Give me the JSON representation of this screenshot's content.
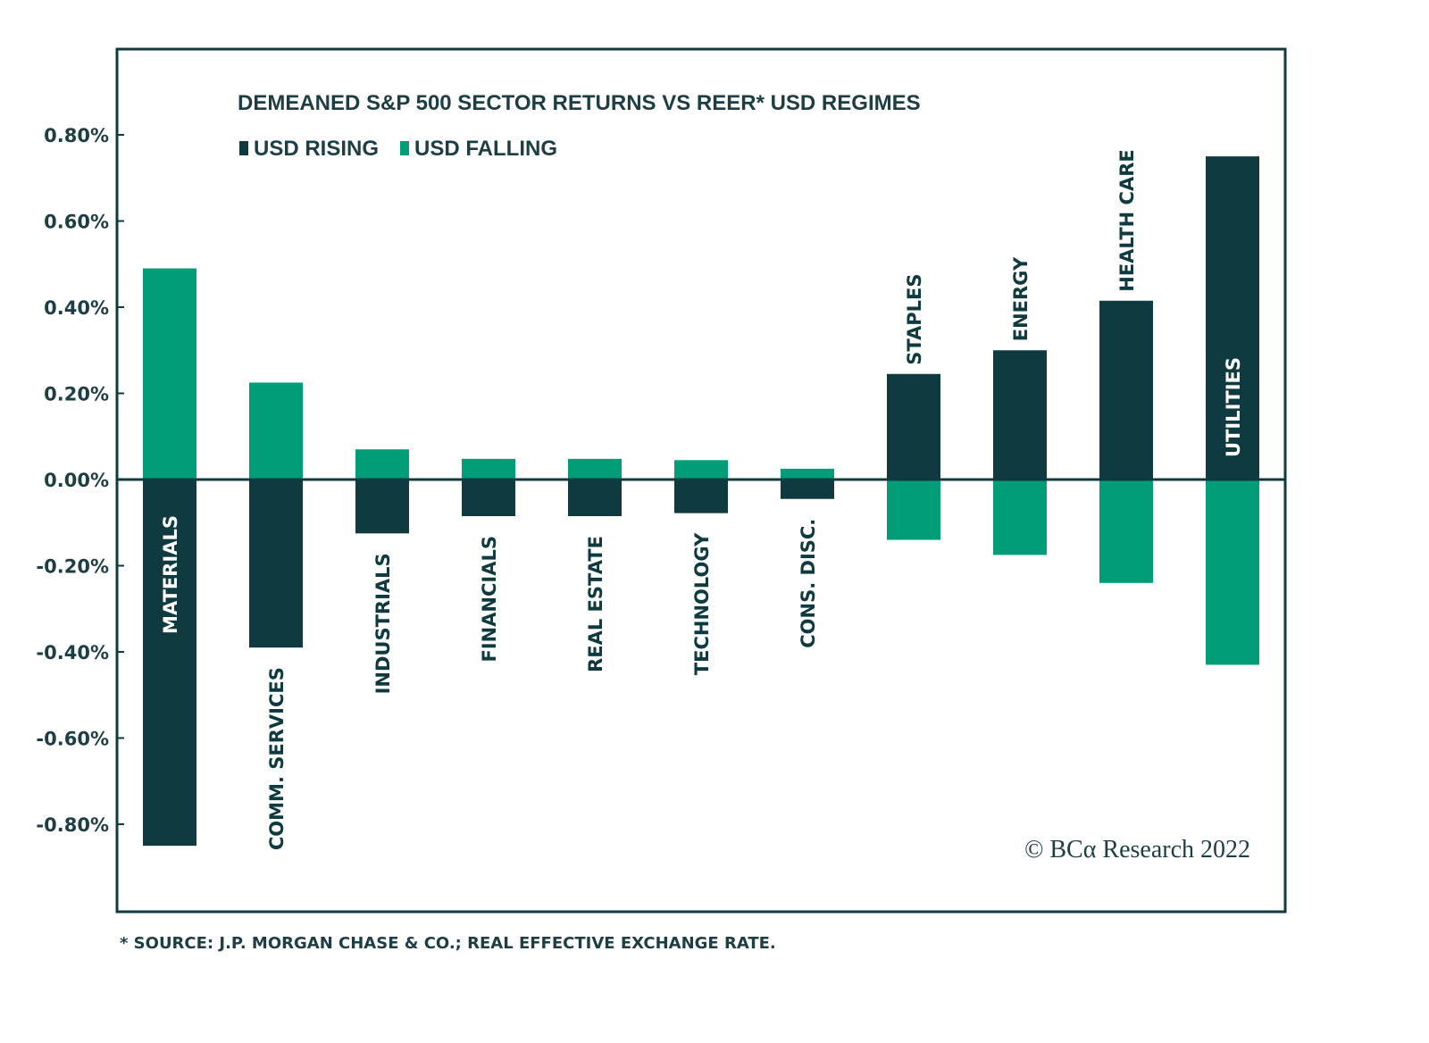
{
  "chart_data": {
    "type": "bar",
    "title": "DEMEANED S&P 500 SECTOR RETURNS VS REER* USD REGIMES",
    "xlabel": "",
    "ylabel": "",
    "ylim": [
      -0.9,
      0.9
    ],
    "yticks": [
      0.8,
      0.6,
      0.4,
      0.2,
      0.0,
      -0.2,
      -0.4,
      -0.6,
      -0.8
    ],
    "ytick_labels": [
      "0.80%",
      "0.60%",
      "0.40%",
      "0.20%",
      "0.00%",
      "-0.20%",
      "-0.40%",
      "-0.60%",
      "-0.80%"
    ],
    "grid": false,
    "legend_position": "top-left",
    "categories": [
      "MATERIALS",
      "COMM. SERVICES",
      "INDUSTRIALS",
      "FINANCIALS",
      "REAL ESTATE",
      "TECHNOLOGY",
      "CONS. DISC.",
      "STAPLES",
      "ENERGY",
      "HEALTH CARE",
      "UTILITIES"
    ],
    "series": [
      {
        "name": "USD RISING",
        "color": "#0f3a40",
        "values": [
          -0.85,
          -0.39,
          -0.125,
          -0.085,
          -0.085,
          -0.078,
          -0.045,
          0.245,
          0.3,
          0.415,
          0.75
        ]
      },
      {
        "name": "USD FALLING",
        "color": "#009d78",
        "values": [
          0.49,
          0.225,
          0.07,
          0.048,
          0.048,
          0.045,
          0.025,
          -0.14,
          -0.175,
          -0.24,
          -0.43
        ]
      }
    ],
    "annotations": [
      "© BCα Research 2022"
    ]
  },
  "footnote": "* SOURCE: J.P. MORGAN CHASE & CO.; REAL EFFECTIVE EXCHANGE RATE.",
  "copyright": "© BCα Research 2022"
}
